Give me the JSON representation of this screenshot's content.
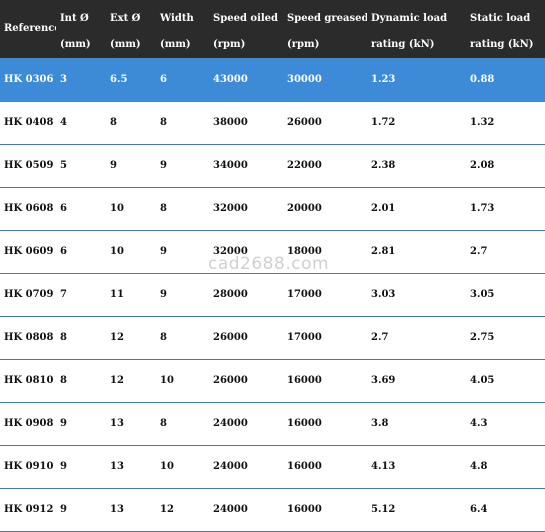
{
  "headers": {
    "reference": "Reference",
    "int_d": [
      "Int Ø",
      "(mm)"
    ],
    "ext_d": [
      "Ext Ø",
      "(mm)"
    ],
    "width": [
      "Width",
      "(mm)"
    ],
    "speed_oiled": [
      "Speed oiled",
      "(rpm)"
    ],
    "speed_greased": [
      "Speed greased",
      "(rpm)"
    ],
    "dynamic_load": [
      "Dynamic load",
      "rating (kN)"
    ],
    "static_load": [
      "Static load",
      "rating (kN)"
    ]
  },
  "rows": [
    {
      "ref": "HK 0306",
      "int": "3",
      "ext": "6.5",
      "width": "6",
      "oiled": "43000",
      "greased": "30000",
      "dynamic": "1.23",
      "static": "0.88",
      "selected": true
    },
    {
      "ref": "HK 0408",
      "int": "4",
      "ext": "8",
      "width": "8",
      "oiled": "38000",
      "greased": "26000",
      "dynamic": "1.72",
      "static": "1.32"
    },
    {
      "ref": "HK 0509",
      "int": "5",
      "ext": "9",
      "width": "9",
      "oiled": "34000",
      "greased": "22000",
      "dynamic": "2.38",
      "static": "2.08"
    },
    {
      "ref": "HK 0608",
      "int": "6",
      "ext": "10",
      "width": "8",
      "oiled": "32000",
      "greased": "20000",
      "dynamic": "2.01",
      "static": "1.73"
    },
    {
      "ref": "HK 0609",
      "int": "6",
      "ext": "10",
      "width": "9",
      "oiled": "32000",
      "greased": "18000",
      "dynamic": "2.81",
      "static": "2.7"
    },
    {
      "ref": "HK 0709",
      "int": "7",
      "ext": "11",
      "width": "9",
      "oiled": "28000",
      "greased": "17000",
      "dynamic": "3.03",
      "static": "3.05"
    },
    {
      "ref": "HK 0808",
      "int": "8",
      "ext": "12",
      "width": "8",
      "oiled": "26000",
      "greased": "17000",
      "dynamic": "2.7",
      "static": "2.75"
    },
    {
      "ref": "HK 0810",
      "int": "8",
      "ext": "12",
      "width": "10",
      "oiled": "26000",
      "greased": "16000",
      "dynamic": "3.69",
      "static": "4.05"
    },
    {
      "ref": "HK 0908",
      "int": "9",
      "ext": "13",
      "width": "8",
      "oiled": "24000",
      "greased": "16000",
      "dynamic": "3.8",
      "static": "4.3"
    },
    {
      "ref": "HK 0910",
      "int": "9",
      "ext": "13",
      "width": "10",
      "oiled": "24000",
      "greased": "16000",
      "dynamic": "4.13",
      "static": "4.8"
    },
    {
      "ref": "HK 0912",
      "int": "9",
      "ext": "13",
      "width": "12",
      "oiled": "24000",
      "greased": "16000",
      "dynamic": "5.12",
      "static": "6.4"
    }
  ],
  "watermark": "cad2688.com"
}
